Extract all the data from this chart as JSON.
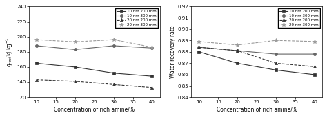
{
  "x": [
    10,
    20,
    30,
    40
  ],
  "left": {
    "ylabel": "$q_{rec}$/kJ·kg$^{-1}$",
    "xlabel": "Concentration of rich amine/%",
    "ylim": [
      120,
      240
    ],
    "yticks": [
      120,
      140,
      160,
      180,
      200,
      220,
      240
    ],
    "xticks": [
      10,
      15,
      20,
      25,
      30,
      35,
      40
    ],
    "series": [
      {
        "label": "10 nm 200 mm",
        "y": [
          165,
          160,
          152,
          148
        ],
        "marker": "s",
        "linestyle": "-",
        "color": "#333333"
      },
      {
        "label": "10 nm 300 mm",
        "y": [
          188,
          183,
          188,
          185
        ],
        "marker": "o",
        "linestyle": "-",
        "color": "#666666"
      },
      {
        "label": "20 nm 200 mm",
        "y": [
          143,
          141,
          137,
          133
        ],
        "marker": "^",
        "linestyle": "--",
        "color": "#333333"
      },
      {
        "label": "20 nm 300 mm",
        "y": [
          196,
          193,
          196,
          186
        ],
        "marker": "*",
        "linestyle": "--",
        "color": "#999999"
      }
    ]
  },
  "right": {
    "ylabel": "Water recovery rate",
    "xlabel": "Concentration of rich amine/%",
    "ylim": [
      0.84,
      0.92
    ],
    "yticks": [
      0.84,
      0.85,
      0.86,
      0.87,
      0.88,
      0.89,
      0.9,
      0.91,
      0.92
    ],
    "xticks": [
      10,
      15,
      20,
      25,
      30,
      35,
      40
    ],
    "series": [
      {
        "label": "10 nm 200 mm",
        "y": [
          0.88,
          0.87,
          0.864,
          0.86
        ],
        "marker": "s",
        "linestyle": "-",
        "color": "#333333"
      },
      {
        "label": "10 nm 300 mm",
        "y": [
          0.884,
          0.881,
          0.878,
          0.878
        ],
        "marker": "o",
        "linestyle": "-",
        "color": "#666666"
      },
      {
        "label": "20 nm 200 mm",
        "y": [
          0.884,
          0.881,
          0.87,
          0.867
        ],
        "marker": "^",
        "linestyle": "--",
        "color": "#333333"
      },
      {
        "label": "20 nm 300 mm",
        "y": [
          0.889,
          0.886,
          0.89,
          0.889
        ],
        "marker": "*",
        "linestyle": "--",
        "color": "#999999"
      }
    ]
  }
}
